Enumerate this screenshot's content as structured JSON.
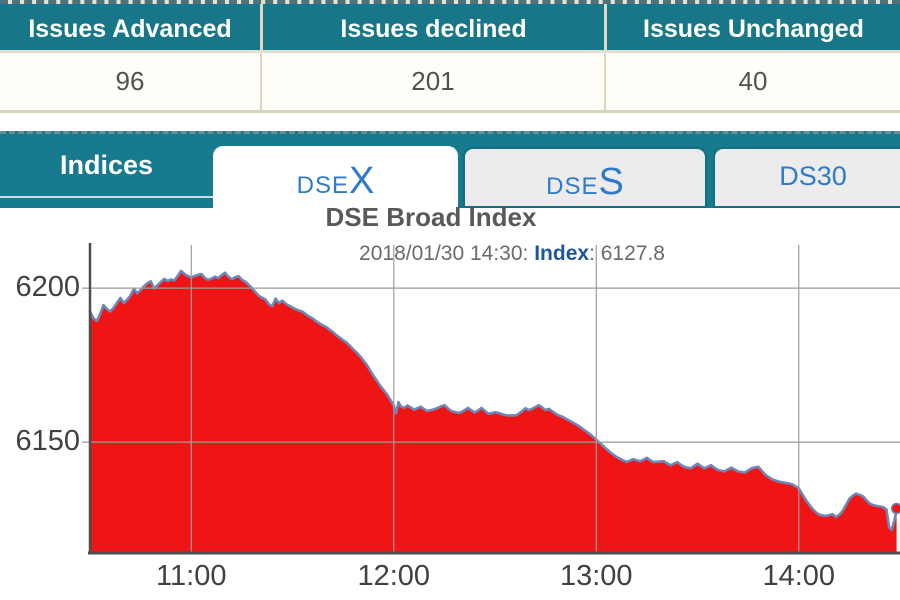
{
  "theme": {
    "teal": "#187a8e",
    "tab_blue": "#2f7ac9",
    "index_blue": "#1f56a0",
    "fill_red": "#ef1515",
    "line_blue": "#6f87b6"
  },
  "summary_table": {
    "columns": [
      {
        "header": "Issues Advanced",
        "value": "96"
      },
      {
        "header": "Issues declined",
        "value": "201"
      },
      {
        "header": "Issues Unchanged",
        "value": "40"
      }
    ]
  },
  "nav": {
    "label": "Indices",
    "tabs": [
      {
        "id": "dsex",
        "prefix": "DSE",
        "suffix": "X",
        "active": true
      },
      {
        "id": "dses",
        "prefix": "DSE",
        "suffix": "S",
        "active": false
      },
      {
        "id": "ds30",
        "label": "DS30",
        "active": false
      }
    ]
  },
  "chart": {
    "title": "DSE Broad Index",
    "subtitle_prefix": "2018/01/30 14:30: ",
    "subtitle_label": "Index",
    "subtitle_value": ": 6127.8"
  },
  "chart_data": {
    "type": "area",
    "title": "DSE Broad Index",
    "timestamp": "2018/01/30 14:30",
    "last_index": 6127.8,
    "x_unit": "minutes since 10:30",
    "x_range": [
      0,
      240
    ],
    "y_range": [
      6114,
      6214
    ],
    "x_ticks": [
      {
        "m": 30,
        "label": "11:00"
      },
      {
        "m": 90,
        "label": "12:00"
      },
      {
        "m": 150,
        "label": "13:00"
      },
      {
        "m": 210,
        "label": "14:00"
      }
    ],
    "y_ticks": [
      6150,
      6200
    ],
    "grid": true,
    "legend": "none",
    "colors": {
      "fill": "#ef1515",
      "line": "#6f87b6",
      "grid": "#9c9c9c",
      "axis": "#4d4d4f"
    },
    "points": [
      [
        0,
        6192.5
      ],
      [
        1,
        6190.2
      ],
      [
        2,
        6189.3
      ],
      [
        3,
        6191.5
      ],
      [
        4,
        6194.5
      ],
      [
        5,
        6193.2
      ],
      [
        6,
        6192.4
      ],
      [
        7,
        6193.6
      ],
      [
        8,
        6195.2
      ],
      [
        9,
        6196.8
      ],
      [
        10,
        6195.2
      ],
      [
        11,
        6196.2
      ],
      [
        12,
        6197.6
      ],
      [
        13,
        6199.8
      ],
      [
        14,
        6198.3
      ],
      [
        15,
        6199.4
      ],
      [
        16,
        6200.6
      ],
      [
        17,
        6201.6
      ],
      [
        18,
        6202.2
      ],
      [
        19,
        6199.9
      ],
      [
        20,
        6200.9
      ],
      [
        21,
        6202
      ],
      [
        22,
        6203
      ],
      [
        23,
        6202.3
      ],
      [
        24,
        6202.8
      ],
      [
        25,
        6202.5
      ],
      [
        26,
        6204
      ],
      [
        27,
        6205.6
      ],
      [
        28,
        6204.6
      ],
      [
        29,
        6203.9
      ],
      [
        30,
        6203.5
      ],
      [
        31,
        6203.9
      ],
      [
        32,
        6204.3
      ],
      [
        33,
        6204.6
      ],
      [
        34,
        6203.3
      ],
      [
        35,
        6202.7
      ],
      [
        36,
        6203.1
      ],
      [
        37,
        6203.7
      ],
      [
        38,
        6203.3
      ],
      [
        39,
        6204.2
      ],
      [
        40,
        6205
      ],
      [
        41,
        6203.7
      ],
      [
        42,
        6202.9
      ],
      [
        43,
        6203.5
      ],
      [
        44,
        6203.9
      ],
      [
        45,
        6202.7
      ],
      [
        46,
        6202.1
      ],
      [
        47,
        6201.1
      ],
      [
        48,
        6200
      ],
      [
        49,
        6198.7
      ],
      [
        50,
        6197.5
      ],
      [
        51,
        6196.9
      ],
      [
        52,
        6196.3
      ],
      [
        53,
        6194.7
      ],
      [
        54,
        6194.1
      ],
      [
        55,
        6196.6
      ],
      [
        56,
        6195.1
      ],
      [
        57,
        6195.9
      ],
      [
        58,
        6194.9
      ],
      [
        59,
        6194.3
      ],
      [
        60,
        6193.7
      ],
      [
        61,
        6193.1
      ],
      [
        62,
        6192.7
      ],
      [
        63,
        6192.3
      ],
      [
        64,
        6191.5
      ],
      [
        65,
        6190.7
      ],
      [
        66,
        6190.1
      ],
      [
        67,
        6189.3
      ],
      [
        68,
        6188.5
      ],
      [
        69,
        6187.9
      ],
      [
        70,
        6187.3
      ],
      [
        71,
        6186.5
      ],
      [
        72,
        6185.7
      ],
      [
        73,
        6184.7
      ],
      [
        74,
        6183.9
      ],
      [
        75,
        6183.1
      ],
      [
        76,
        6182.3
      ],
      [
        77,
        6181.3
      ],
      [
        78,
        6180.1
      ],
      [
        79,
        6179.1
      ],
      [
        80,
        6177.9
      ],
      [
        81,
        6176.5
      ],
      [
        82,
        6175.1
      ],
      [
        83,
        6173.3
      ],
      [
        84,
        6171.5
      ],
      [
        85,
        6169.9
      ],
      [
        86,
        6168.3
      ],
      [
        87,
        6166.9
      ],
      [
        88,
        6165.5
      ],
      [
        89,
        6163.7
      ],
      [
        90,
        6161.9
      ],
      [
        90.7,
        6159.4
      ],
      [
        91.4,
        6163
      ],
      [
        92,
        6161.7
      ],
      [
        93,
        6161.1
      ],
      [
        94,
        6161.9
      ],
      [
        95,
        6161.3
      ],
      [
        96,
        6160.5
      ],
      [
        97,
        6161
      ],
      [
        98,
        6161.5
      ],
      [
        99,
        6160.7
      ],
      [
        100,
        6160.1
      ],
      [
        101,
        6160.4
      ],
      [
        102,
        6160.7
      ],
      [
        103,
        6161.1
      ],
      [
        104,
        6161.6
      ],
      [
        105,
        6162
      ],
      [
        106,
        6161
      ],
      [
        107,
        6160.1
      ],
      [
        108,
        6159.8
      ],
      [
        109,
        6159.5
      ],
      [
        110,
        6159.7
      ],
      [
        111,
        6160.4
      ],
      [
        112,
        6161.1
      ],
      [
        113,
        6160.3
      ],
      [
        114,
        6159.6
      ],
      [
        115,
        6160.3
      ],
      [
        116,
        6161.1
      ],
      [
        117,
        6160.1
      ],
      [
        118,
        6159.2
      ],
      [
        119,
        6159.4
      ],
      [
        120,
        6159.7
      ],
      [
        121,
        6159.5
      ],
      [
        122,
        6159.1
      ],
      [
        123,
        6158.8
      ],
      [
        124,
        6158.6
      ],
      [
        125,
        6158.7
      ],
      [
        126,
        6158.6
      ],
      [
        127,
        6159.2
      ],
      [
        128,
        6160
      ],
      [
        129,
        6161
      ],
      [
        130,
        6160.4
      ],
      [
        131,
        6160.8
      ],
      [
        132,
        6161.4
      ],
      [
        133,
        6162
      ],
      [
        134,
        6161.2
      ],
      [
        135,
        6160.4
      ],
      [
        136,
        6160.8
      ],
      [
        137,
        6160
      ],
      [
        138,
        6159.2
      ],
      [
        139,
        6158.6
      ],
      [
        140,
        6158.2
      ],
      [
        141,
        6157.6
      ],
      [
        142,
        6157
      ],
      [
        143,
        6156.4
      ],
      [
        144,
        6155.8
      ],
      [
        145,
        6155.1
      ],
      [
        146,
        6154.3
      ],
      [
        147,
        6153.5
      ],
      [
        148,
        6152.7
      ],
      [
        149,
        6151.8
      ],
      [
        150,
        6150.8
      ],
      [
        151,
        6149.8
      ],
      [
        152,
        6148.8
      ],
      [
        153,
        6147.8
      ],
      [
        154,
        6146.8
      ],
      [
        155,
        6146
      ],
      [
        156,
        6145.2
      ],
      [
        157,
        6144.6
      ],
      [
        158,
        6144
      ],
      [
        159,
        6143.6
      ],
      [
        160,
        6144
      ],
      [
        161,
        6144.5
      ],
      [
        162,
        6144.1
      ],
      [
        163,
        6143.8
      ],
      [
        164,
        6144.3
      ],
      [
        165,
        6144.9
      ],
      [
        166,
        6144.1
      ],
      [
        167,
        6143.5
      ],
      [
        168,
        6143.6
      ],
      [
        169,
        6143.7
      ],
      [
        170,
        6143.8
      ],
      [
        171,
        6143.1
      ],
      [
        172,
        6142.5
      ],
      [
        173,
        6143
      ],
      [
        174,
        6143.5
      ],
      [
        175,
        6142.7
      ],
      [
        176,
        6142
      ],
      [
        177,
        6141.7
      ],
      [
        178,
        6141.5
      ],
      [
        179,
        6142.2
      ],
      [
        180,
        6143
      ],
      [
        181,
        6142.2
      ],
      [
        182,
        6141.5
      ],
      [
        183,
        6142
      ],
      [
        184,
        6142.5
      ],
      [
        185,
        6141.7
      ],
      [
        186,
        6141
      ],
      [
        187,
        6140.7
      ],
      [
        188,
        6140.5
      ],
      [
        189,
        6141.1
      ],
      [
        190,
        6141.7
      ],
      [
        191,
        6141.1
      ],
      [
        192,
        6140.5
      ],
      [
        193,
        6140.3
      ],
      [
        194,
        6140.1
      ],
      [
        195,
        6140.8
      ],
      [
        196,
        6141.5
      ],
      [
        197,
        6141.8
      ],
      [
        198,
        6142
      ],
      [
        199,
        6140.8
      ],
      [
        200,
        6139.5
      ],
      [
        201,
        6138.7
      ],
      [
        202,
        6138
      ],
      [
        203,
        6137.6
      ],
      [
        204,
        6137.2
      ],
      [
        205,
        6137
      ],
      [
        206,
        6136.8
      ],
      [
        207,
        6136.6
      ],
      [
        208,
        6136.3
      ],
      [
        209,
        6135.7
      ],
      [
        210,
        6135
      ],
      [
        211,
        6133.2
      ],
      [
        212,
        6131.4
      ],
      [
        213,
        6129.8
      ],
      [
        214,
        6128.4
      ],
      [
        215,
        6127.3
      ],
      [
        216,
        6126.5
      ],
      [
        217,
        6126.2
      ],
      [
        218,
        6126
      ],
      [
        219,
        6126.3
      ],
      [
        220,
        6126.6
      ],
      [
        221,
        6125.7
      ],
      [
        222,
        6126.4
      ],
      [
        223,
        6127.6
      ],
      [
        224,
        6129.6
      ],
      [
        225,
        6131.6
      ],
      [
        226,
        6132.6
      ],
      [
        227,
        6133.3
      ],
      [
        228,
        6132.9
      ],
      [
        229,
        6132.4
      ],
      [
        230,
        6131.2
      ],
      [
        231,
        6130.1
      ],
      [
        232,
        6129.6
      ],
      [
        233,
        6129.3
      ],
      [
        234,
        6129.1
      ],
      [
        235,
        6128.9
      ],
      [
        236,
        6128.1
      ],
      [
        236.8,
        6122.3
      ],
      [
        237.5,
        6121.5
      ],
      [
        238.3,
        6124.5
      ],
      [
        239,
        6127.8
      ]
    ]
  }
}
